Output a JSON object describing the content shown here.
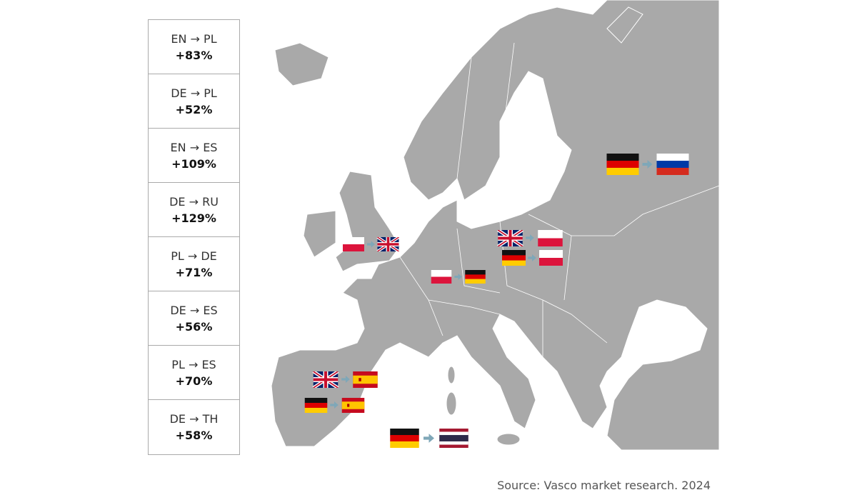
{
  "table": {
    "rows": [
      {
        "pair": "EN → PL",
        "growth": "+83%"
      },
      {
        "pair": "DE → PL",
        "growth": "+52%"
      },
      {
        "pair": "EN → ES",
        "growth": "+109%"
      },
      {
        "pair": "DE → RU",
        "growth": "+129%"
      },
      {
        "pair": "PL → DE",
        "growth": "+71%"
      },
      {
        "pair": "DE → ES",
        "growth": "+56%"
      },
      {
        "pair": "PL → ES",
        "growth": "+70%"
      },
      {
        "pair": "DE → TH",
        "growth": "+58%"
      }
    ]
  },
  "source": "Source: Vasco market research. 2024"
}
